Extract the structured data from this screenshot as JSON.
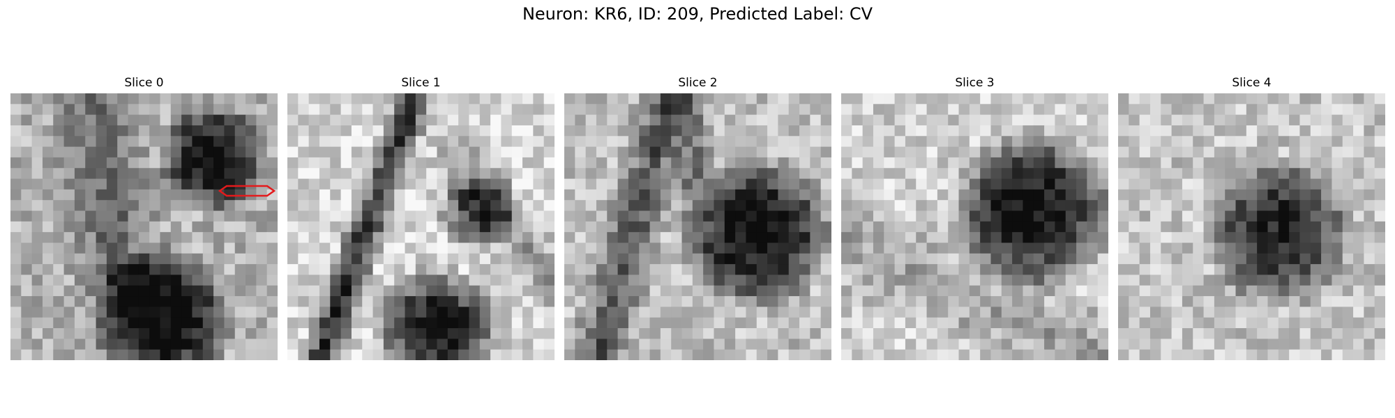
{
  "figure": {
    "title": "Neuron: KR6, ID: 209, Predicted Label: CV"
  },
  "panels": [
    {
      "title": "Slice 0",
      "has_outline": true,
      "outline_color": "#e41a1c"
    },
    {
      "title": "Slice 1",
      "has_outline": false
    },
    {
      "title": "Slice 2",
      "has_outline": false
    },
    {
      "title": "Slice 3",
      "has_outline": false
    },
    {
      "title": "Slice 4",
      "has_outline": false
    }
  ],
  "image_style": {
    "colormap": "grayscale",
    "grid_cells": 25
  }
}
